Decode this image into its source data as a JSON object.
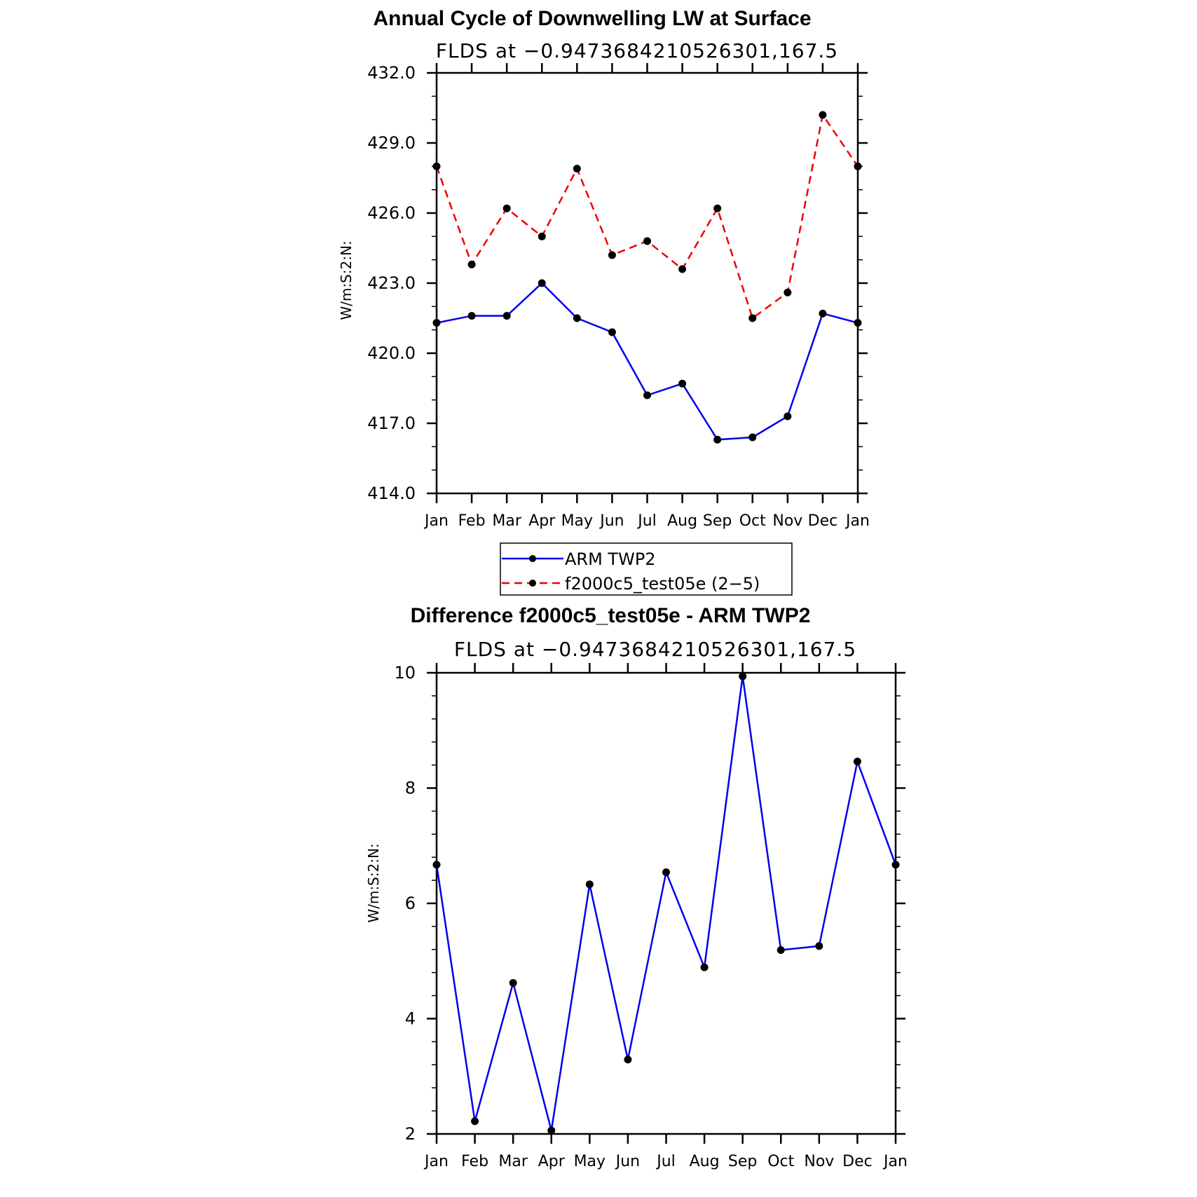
{
  "chart_data": [
    {
      "type": "line",
      "title": "Annual Cycle of Downwelling LW at Surface",
      "subtitle": "FLDS at −0.9473684210526301,167.5",
      "ylabel": "W/m:S:2:N:",
      "xlabel": "",
      "ylim": [
        414.0,
        432.0
      ],
      "yticks": [
        "414.0",
        "417.0",
        "420.0",
        "423.0",
        "426.0",
        "429.0",
        "432.0"
      ],
      "categories": [
        "Jan",
        "Feb",
        "Mar",
        "Apr",
        "May",
        "Jun",
        "Jul",
        "Aug",
        "Sep",
        "Oct",
        "Nov",
        "Dec",
        "Jan"
      ],
      "series": [
        {
          "name": "ARM TWP2",
          "color": "#0000ee",
          "dash": "solid",
          "values": [
            421.3,
            421.6,
            421.6,
            423.0,
            421.5,
            420.9,
            418.2,
            418.7,
            416.3,
            416.4,
            417.3,
            421.7,
            421.3
          ]
        },
        {
          "name": "f2000c5_test05e (2−5)",
          "color": "#ee0000",
          "dash": "dashed",
          "values": [
            428.0,
            423.8,
            426.2,
            425.0,
            427.9,
            424.2,
            424.8,
            423.6,
            426.2,
            421.5,
            422.6,
            430.2,
            428.0
          ]
        }
      ],
      "legend": "below",
      "grid": false
    },
    {
      "type": "line",
      "title": "Difference f2000c5_test05e - ARM TWP2",
      "subtitle": "FLDS at −0.9473684210526301,167.5",
      "ylabel": "W/m:S:2:N:",
      "xlabel": "",
      "ylim": [
        2,
        10
      ],
      "yticks": [
        "2",
        "4",
        "6",
        "8",
        "10"
      ],
      "categories": [
        "Jan",
        "Feb",
        "Mar",
        "Apr",
        "May",
        "Jun",
        "Jul",
        "Aug",
        "Sep",
        "Oct",
        "Nov",
        "Dec",
        "Jan"
      ],
      "series": [
        {
          "color": "#0000ee",
          "dash": "solid",
          "values": [
            6.67,
            2.22,
            4.62,
            2.06,
            6.33,
            3.29,
            6.54,
            4.89,
            9.94,
            5.19,
            5.26,
            8.46,
            6.67
          ]
        }
      ],
      "grid": false
    }
  ]
}
